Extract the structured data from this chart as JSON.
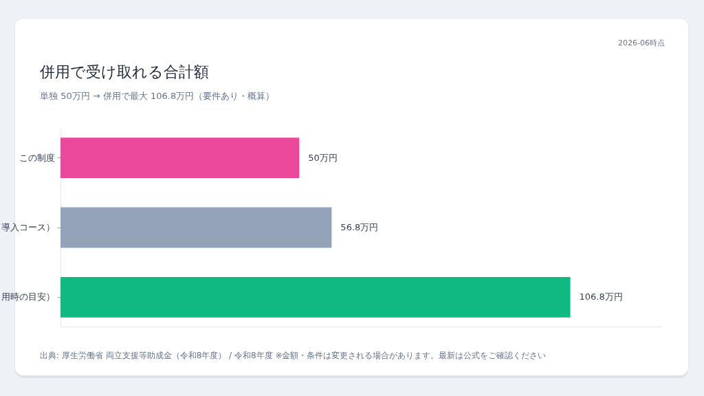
{
  "chart_data": {
    "type": "bar",
    "orientation": "horizontal",
    "title": "併用で受け取れる合計額",
    "subtitle": "単独 50万円 → 併用で最大 106.8万円（要件あり・概算）",
    "categories": [
      "この制度",
      "導入コース）",
      "用時の目安）"
    ],
    "values": [
      50,
      56.8,
      106.8
    ],
    "colors": [
      "#ec4899",
      "#94a3b8",
      "#10b981"
    ],
    "value_labels": [
      "50万円",
      "56.8万円",
      "106.8万円"
    ],
    "annotations": [
      "2026-06時点",
      "出典: 厚生労働省 両立支援等助成金（令和8年度） / 令和8年度 ※金額・条件は変更される場合があります。最新は公式をご確認ください"
    ]
  }
}
